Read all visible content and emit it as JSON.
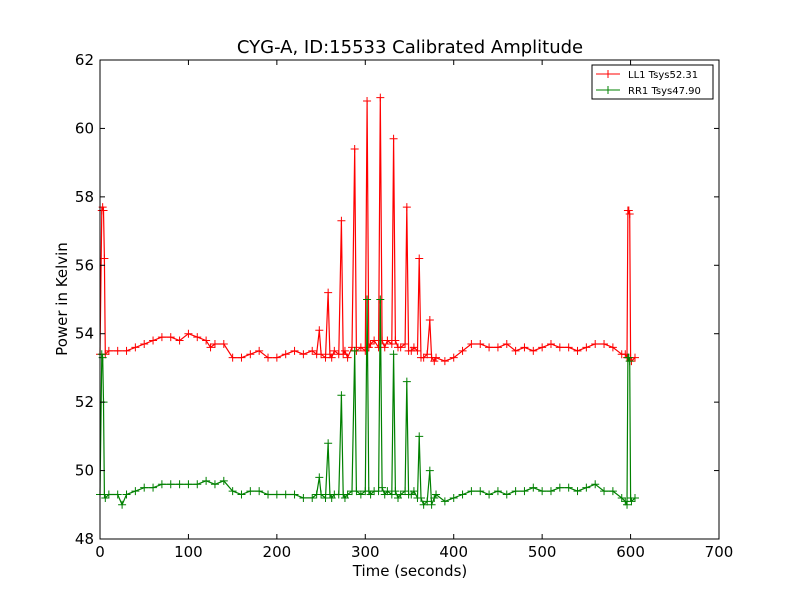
{
  "chart_data": {
    "type": "line",
    "title": "CYG-A, ID:15533 Calibrated Amplitude",
    "xlabel": "Time (seconds)",
    "ylabel": "Power in Kelvin",
    "xlim": [
      0,
      700
    ],
    "ylim": [
      48,
      62
    ],
    "xticks": [
      0,
      100,
      200,
      300,
      400,
      500,
      600,
      700
    ],
    "yticks": [
      48,
      50,
      52,
      54,
      56,
      58,
      60,
      62
    ],
    "grid": false,
    "legend_position": "top-right",
    "marker": "plus",
    "series": [
      {
        "name": "LL1 Tsys52.31",
        "color": "#ff0000",
        "x": [
          0,
          2,
          3,
          4,
          5,
          6,
          10,
          20,
          30,
          40,
          50,
          60,
          70,
          80,
          90,
          100,
          110,
          120,
          125,
          130,
          140,
          150,
          160,
          170,
          180,
          190,
          200,
          210,
          220,
          230,
          240,
          245,
          248,
          250,
          255,
          258,
          260,
          262,
          265,
          270,
          273,
          275,
          277,
          280,
          285,
          288,
          290,
          295,
          300,
          302,
          304,
          306,
          310,
          315,
          317,
          319,
          322,
          325,
          330,
          332,
          334,
          337,
          340,
          345,
          347,
          349,
          352,
          355,
          359,
          361,
          363,
          366,
          370,
          373,
          375,
          378,
          380,
          390,
          400,
          410,
          420,
          430,
          440,
          450,
          460,
          470,
          480,
          490,
          500,
          510,
          520,
          530,
          540,
          550,
          560,
          570,
          580,
          590,
          594,
          596,
          597,
          598,
          599,
          600,
          601,
          605
        ],
        "values": [
          53.4,
          57.6,
          57.7,
          57.6,
          56.2,
          53.4,
          53.5,
          53.5,
          53.5,
          53.6,
          53.7,
          53.8,
          53.9,
          53.9,
          53.8,
          54.0,
          53.9,
          53.8,
          53.6,
          53.7,
          53.7,
          53.3,
          53.3,
          53.4,
          53.5,
          53.3,
          53.3,
          53.4,
          53.5,
          53.4,
          53.5,
          53.4,
          54.1,
          53.4,
          53.3,
          55.2,
          53.4,
          53.3,
          53.5,
          53.4,
          57.3,
          53.4,
          53.5,
          53.3,
          53.6,
          59.4,
          53.5,
          53.6,
          53.5,
          60.8,
          53.6,
          53.7,
          53.8,
          53.6,
          60.9,
          53.8,
          53.6,
          53.8,
          53.7,
          59.7,
          53.8,
          53.6,
          53.6,
          53.7,
          57.7,
          53.5,
          53.5,
          53.6,
          53.5,
          56.2,
          53.3,
          53.3,
          53.4,
          54.4,
          53.3,
          53.2,
          53.3,
          53.2,
          53.3,
          53.5,
          53.7,
          53.7,
          53.6,
          53.6,
          53.7,
          53.5,
          53.6,
          53.5,
          53.6,
          53.7,
          53.6,
          53.6,
          53.5,
          53.6,
          53.7,
          53.7,
          53.6,
          53.4,
          53.4,
          53.3,
          57.6,
          57.6,
          57.5,
          53.3,
          53.2,
          53.3
        ]
      },
      {
        "name": "RR1 Tsys47.90",
        "color": "#008000",
        "x": [
          0,
          2,
          3,
          4,
          5,
          6,
          10,
          20,
          25,
          30,
          40,
          50,
          60,
          70,
          80,
          90,
          100,
          110,
          120,
          130,
          140,
          150,
          160,
          170,
          180,
          190,
          200,
          210,
          220,
          230,
          240,
          245,
          248,
          250,
          255,
          258,
          260,
          262,
          265,
          270,
          273,
          275,
          277,
          280,
          285,
          288,
          290,
          295,
          300,
          302,
          304,
          306,
          310,
          315,
          317,
          319,
          322,
          325,
          330,
          332,
          334,
          337,
          340,
          345,
          347,
          349,
          352,
          355,
          359,
          361,
          363,
          366,
          370,
          373,
          375,
          378,
          380,
          390,
          400,
          410,
          420,
          430,
          440,
          450,
          460,
          470,
          480,
          490,
          500,
          510,
          520,
          530,
          540,
          550,
          560,
          570,
          580,
          590,
          594,
          596,
          597,
          598,
          599,
          600,
          601,
          605
        ],
        "values": [
          49.3,
          53.4,
          53.3,
          52.0,
          49.3,
          49.2,
          49.3,
          49.3,
          49.0,
          49.3,
          49.4,
          49.5,
          49.5,
          49.6,
          49.6,
          49.6,
          49.6,
          49.6,
          49.7,
          49.6,
          49.7,
          49.4,
          49.3,
          49.4,
          49.4,
          49.3,
          49.3,
          49.3,
          49.3,
          49.2,
          49.2,
          49.3,
          49.8,
          49.3,
          49.2,
          50.8,
          49.3,
          49.2,
          49.3,
          49.3,
          52.2,
          49.3,
          49.2,
          49.3,
          49.4,
          53.5,
          49.4,
          49.3,
          49.4,
          55.0,
          49.4,
          49.3,
          49.4,
          49.4,
          55.0,
          49.5,
          49.3,
          49.4,
          49.3,
          53.4,
          49.4,
          49.2,
          49.3,
          49.4,
          52.6,
          49.3,
          49.3,
          49.4,
          49.2,
          51.0,
          49.2,
          49.0,
          49.1,
          50.0,
          49.0,
          49.2,
          49.3,
          49.1,
          49.2,
          49.3,
          49.4,
          49.4,
          49.3,
          49.4,
          49.3,
          49.4,
          49.4,
          49.5,
          49.4,
          49.4,
          49.5,
          49.5,
          49.4,
          49.5,
          49.6,
          49.4,
          49.4,
          49.2,
          49.1,
          49.0,
          53.3,
          53.3,
          53.2,
          49.2,
          49.1,
          49.2
        ]
      }
    ]
  }
}
